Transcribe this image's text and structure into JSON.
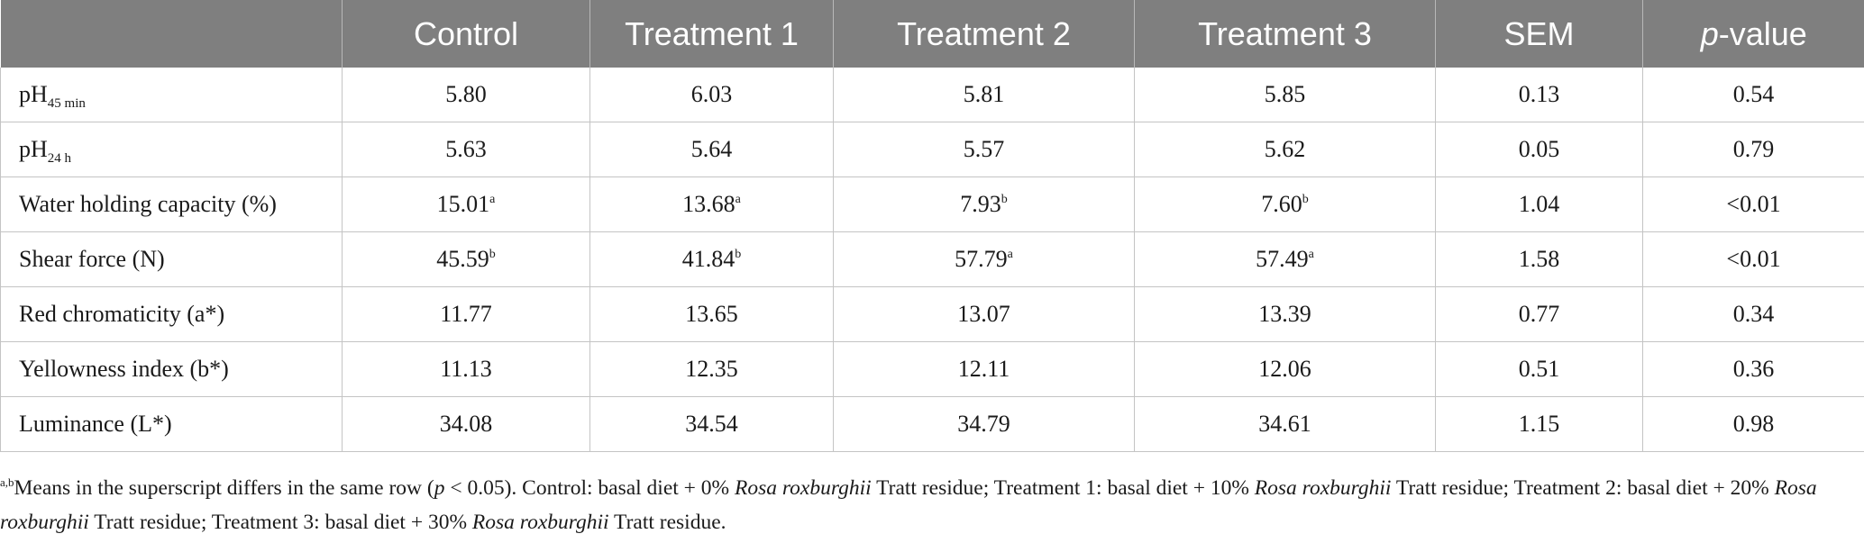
{
  "table": {
    "headers": [
      "",
      "Control",
      "Treatment 1",
      "Treatment 2",
      "Treatment 3",
      "SEM",
      "-value"
    ],
    "header_p_italic": "p",
    "rows": [
      {
        "label": "pH",
        "label_sub": "45 min",
        "cells": [
          "5.80",
          "6.03",
          "5.81",
          "5.85",
          "0.13",
          "0.54"
        ],
        "sups": [
          "",
          "",
          "",
          ""
        ]
      },
      {
        "label": "pH",
        "label_sub": "24 h",
        "cells": [
          "5.63",
          "5.64",
          "5.57",
          "5.62",
          "0.05",
          "0.79"
        ],
        "sups": [
          "",
          "",
          "",
          ""
        ]
      },
      {
        "label": "Water holding capacity (%)",
        "label_sub": "",
        "cells": [
          "15.01",
          "13.68",
          "7.93",
          "7.60",
          "1.04",
          "<0.01"
        ],
        "sups": [
          "a",
          "a",
          "b",
          "b"
        ]
      },
      {
        "label": "Shear force (N)",
        "label_sub": "",
        "cells": [
          "45.59",
          "41.84",
          "57.79",
          "57.49",
          "1.58",
          "<0.01"
        ],
        "sups": [
          "b",
          "b",
          "a",
          "a"
        ]
      },
      {
        "label": "Red chromaticity (a*)",
        "label_sub": "",
        "cells": [
          "11.77",
          "13.65",
          "13.07",
          "13.39",
          "0.77",
          "0.34"
        ],
        "sups": [
          "",
          "",
          "",
          ""
        ]
      },
      {
        "label": "Yellowness index (b*)",
        "label_sub": "",
        "cells": [
          "11.13",
          "12.35",
          "12.11",
          "12.06",
          "0.51",
          "0.36"
        ],
        "sups": [
          "",
          "",
          "",
          ""
        ]
      },
      {
        "label": "Luminance (L*)",
        "label_sub": "",
        "cells": [
          "34.08",
          "34.54",
          "34.79",
          "34.61",
          "1.15",
          "0.98"
        ],
        "sups": [
          "",
          "",
          "",
          ""
        ]
      }
    ]
  },
  "footnote": {
    "sup": "a,b",
    "p1": "Means in the superscript differs in the same row (",
    "p_italic": "p",
    "p2": " < 0.05). Control: basal diet + 0% ",
    "species": "Rosa roxburghii",
    "residue": " Tratt residue; Treatment 1: basal diet + 10% ",
    "t1_end": " Tratt residue; Treatment 2: basal diet + 20% ",
    "t2_end": " Tratt residue; Treatment 3: basal diet + 30% ",
    "t3_end": " Tratt residue."
  }
}
